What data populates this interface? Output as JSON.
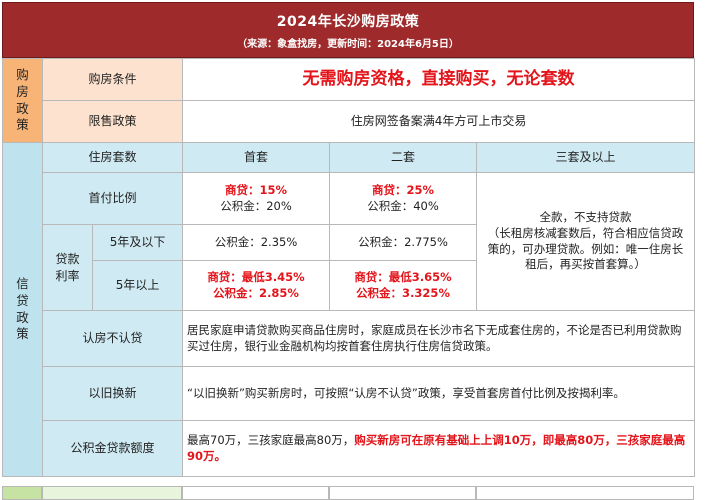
{
  "header": {
    "title": "2024年长沙购房政策",
    "subtitle": "（来源：象盒找房，更新时间：2024年6月5日）"
  },
  "purchase": {
    "section_label": "购\n房\n政\n策",
    "conditions_label": "购房条件",
    "conditions_value": "无需购房资格，直接购买，无论套数",
    "resale_label": "限售政策",
    "resale_value": "住房网签备案满4年方可上市交易"
  },
  "credit": {
    "section_label": "信\n贷\n政\n策",
    "headers": {
      "house_count": "住房套数",
      "first": "首套",
      "second": "二套",
      "third": "三套及以上"
    },
    "down_payment": {
      "label": "首付比例",
      "first_commercial": "商贷：15%",
      "first_fund": "公积金：20%",
      "second_commercial": "商贷：25%",
      "second_fund": "公积金：40%"
    },
    "third_note": "全款，不支持贷款\n（长租房核减套数后，符合相应信贷政策的，可办理贷款。例如：唯一住房长租后，再买按首套算。）",
    "rate": {
      "label": "贷款\n利率",
      "under5_label": "5年及以下",
      "under5_first": "公积金：2.35%",
      "under5_second": "公积金：2.775%",
      "over5_label": "5年以上",
      "over5_first_commercial": "商贷：最低3.45%",
      "over5_first_fund": "公积金：2.85%",
      "over5_second_commercial": "商贷：最低3.65%",
      "over5_second_fund": "公积金：3.325%"
    },
    "recognize": {
      "label": "认房不认贷",
      "value": "居民家庭申请贷款购买商品住房时，家庭成员在长沙市名下无成套住房的，不论是否已利用贷款购买过住房，银行业金融机构均按首套住房执行住房信贷政策。"
    },
    "trade_in": {
      "label": "以旧换新",
      "value": "“以旧换新”购买新房时，可按照“认房不认贷”政策，享受首套房首付比例及按揭利率。"
    },
    "fund_limit": {
      "label": "公积金贷款额度",
      "value_plain": "最高70万，三孩家庭最高80万，",
      "value_red": "购买新房可在原有基础上上调10万，即最高80万，三孩家庭最高90万。"
    }
  }
}
